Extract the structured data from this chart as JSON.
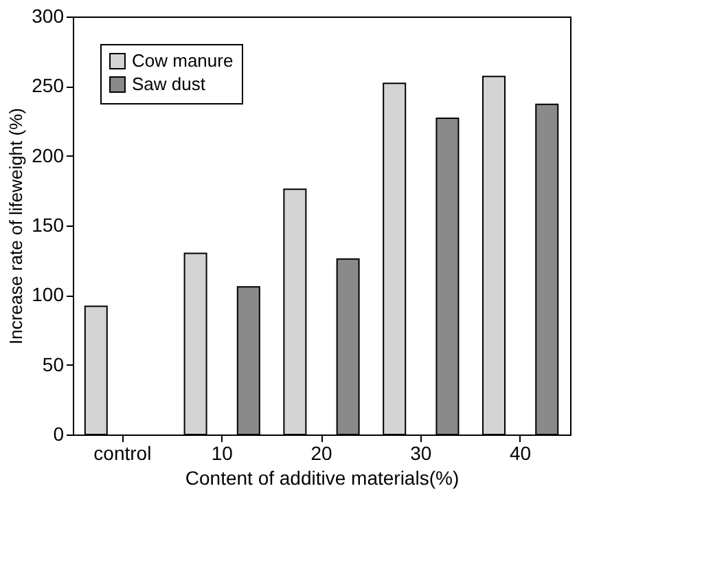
{
  "chart_data": {
    "type": "bar",
    "xlabel": "Content of additive materials(%)",
    "ylabel": "Increase rate of lifeweight (%)",
    "categories": [
      "control",
      "10",
      "20",
      "30",
      "40"
    ],
    "series": [
      {
        "name": "Cow manure",
        "color": "#d4d4d4",
        "values": [
          92,
          130,
          176,
          252,
          257
        ]
      },
      {
        "name": "Saw dust",
        "color": "#8a8a8a",
        "values": [
          null,
          106,
          126,
          227,
          237
        ]
      }
    ],
    "ylim": [
      0,
      300
    ],
    "yticks": [
      0,
      50,
      100,
      150,
      200,
      250,
      300
    ],
    "grid": false,
    "legend": "top left"
  }
}
